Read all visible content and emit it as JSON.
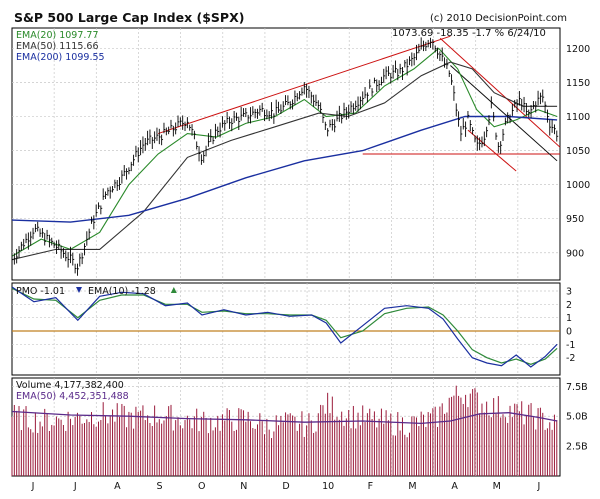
{
  "header": {
    "title": "S&P 500 Large Cap Index ($SPX)",
    "copyright": "(c) 2010 DecisionPoint.com",
    "quote": "1073.69  -18.35  -1.7 %  6/24/10"
  },
  "colors": {
    "price": "#000000",
    "ema20": "#2a8a2a",
    "ema50": "#333333",
    "ema200": "#1a2fa0",
    "trend_red": "#cc1111",
    "pmo": "#1a2fa0",
    "pmo_signal": "#2f8a3a",
    "zero_line": "#c08020",
    "volume": "#9a1a3a",
    "volume_ema": "#5a2a8a",
    "grid": "#c8c8c8"
  },
  "chart_data": [
    {
      "type": "line",
      "name": "price-panel",
      "legend": [
        {
          "label": "EMA(20)",
          "value": "1097.77",
          "color": "#2a8a2a"
        },
        {
          "label": "EMA(50)",
          "value": "1115.66",
          "color": "#333333"
        },
        {
          "label": "EMA(200)",
          "value": "1099.55",
          "color": "#1a2fa0"
        }
      ],
      "ylim": [
        860,
        1230
      ],
      "yticks": [
        "900",
        "950",
        "1000",
        "1050",
        "1100",
        "1150",
        "1200"
      ],
      "x_month_labels": [
        "J",
        "J",
        "A",
        "S",
        "O",
        "N",
        "D",
        "10",
        "F",
        "M",
        "A",
        "M",
        "J"
      ],
      "x_day_range": [
        0,
        375
      ],
      "series": [
        {
          "name": "Price",
          "x": [
            0,
            15,
            30,
            45,
            55,
            65,
            75,
            90,
            105,
            120,
            130,
            140,
            150,
            160,
            170,
            180,
            190,
            200,
            210,
            215,
            225,
            235,
            245,
            255,
            265,
            275,
            282,
            287,
            293,
            300,
            307,
            312,
            318,
            323,
            328,
            333,
            338,
            343,
            348,
            353,
            358,
            363,
            368,
            373
          ],
          "y": [
            890,
            935,
            910,
            880,
            945,
            990,
            1010,
            1060,
            1075,
            1095,
            1040,
            1080,
            1095,
            1100,
            1110,
            1105,
            1120,
            1145,
            1115,
            1080,
            1100,
            1120,
            1140,
            1160,
            1165,
            1185,
            1205,
            1215,
            1190,
            1160,
            1075,
            1095,
            1055,
            1070,
            1115,
            1055,
            1090,
            1110,
            1125,
            1100,
            1120,
            1130,
            1090,
            1075
          ]
        },
        {
          "name": "EMA(20)",
          "x": [
            0,
            20,
            40,
            60,
            80,
            100,
            120,
            140,
            160,
            180,
            200,
            215,
            235,
            255,
            275,
            292,
            305,
            318,
            330,
            345,
            360,
            373
          ],
          "y": [
            895,
            920,
            905,
            930,
            1000,
            1045,
            1075,
            1070,
            1090,
            1100,
            1125,
            1100,
            1105,
            1145,
            1170,
            1200,
            1170,
            1110,
            1085,
            1095,
            1110,
            1100
          ]
        },
        {
          "name": "EMA(50)",
          "x": [
            0,
            30,
            60,
            90,
            120,
            150,
            180,
            210,
            230,
            255,
            280,
            300,
            315,
            330,
            350,
            373
          ],
          "y": [
            890,
            905,
            905,
            960,
            1040,
            1065,
            1085,
            1105,
            1100,
            1120,
            1160,
            1180,
            1170,
            1135,
            1115,
            1115
          ]
        },
        {
          "name": "EMA(200)",
          "x": [
            0,
            40,
            80,
            120,
            160,
            200,
            240,
            280,
            310,
            340,
            373
          ],
          "y": [
            948,
            945,
            955,
            980,
            1010,
            1035,
            1050,
            1080,
            1100,
            1100,
            1095
          ]
        }
      ],
      "annotations": [
        {
          "kind": "trendline",
          "color": "#cc1111",
          "x1": 100,
          "y1": 1075,
          "x2": 300,
          "y2": 1218
        },
        {
          "kind": "trendline",
          "color": "#cc1111",
          "x1": 240,
          "y1": 1045,
          "x2": 375,
          "y2": 1045
        },
        {
          "kind": "trendline",
          "color": "#cc1111",
          "x1": 293,
          "y1": 1215,
          "x2": 375,
          "y2": 1055
        },
        {
          "kind": "trendline",
          "color": "#cc1111",
          "x1": 312,
          "y1": 1080,
          "x2": 345,
          "y2": 1020
        },
        {
          "kind": "trendline",
          "color": "#111111",
          "x1": 300,
          "y1": 1175,
          "x2": 373,
          "y2": 1035
        }
      ]
    },
    {
      "type": "line",
      "name": "pmo-panel",
      "legend": [
        {
          "label": "PMO",
          "value": "-1.01",
          "color": "#1a2fa0",
          "marker": "down"
        },
        {
          "label": "EMA(10)",
          "value": "-1.28",
          "color": "#2f8a3a",
          "marker": "up"
        }
      ],
      "ylim": [
        -3.3,
        3.6
      ],
      "yticks": [
        "-2",
        "-1",
        "0",
        "1",
        "2",
        "3"
      ],
      "zero_line": 0,
      "series": [
        {
          "name": "PMO",
          "x": [
            0,
            15,
            30,
            45,
            60,
            75,
            90,
            105,
            120,
            130,
            145,
            160,
            175,
            190,
            205,
            215,
            225,
            240,
            255,
            270,
            285,
            295,
            305,
            315,
            325,
            335,
            345,
            355,
            365,
            373
          ],
          "y": [
            3.3,
            2.2,
            2.5,
            0.8,
            2.6,
            2.9,
            2.8,
            1.9,
            2.1,
            1.2,
            1.6,
            1.2,
            1.4,
            1.1,
            1.2,
            0.6,
            -0.9,
            0.4,
            1.7,
            1.9,
            1.7,
            0.9,
            -0.6,
            -2.0,
            -2.4,
            -2.6,
            -1.8,
            -2.7,
            -1.9,
            -1.0
          ]
        },
        {
          "name": "EMA(10)",
          "x": [
            0,
            15,
            30,
            45,
            60,
            75,
            90,
            105,
            120,
            130,
            145,
            160,
            175,
            190,
            205,
            215,
            225,
            240,
            255,
            270,
            285,
            295,
            305,
            315,
            325,
            335,
            345,
            355,
            365,
            373
          ],
          "y": [
            3.2,
            2.4,
            2.3,
            1.0,
            2.3,
            2.7,
            2.7,
            2.0,
            2.0,
            1.4,
            1.5,
            1.3,
            1.3,
            1.2,
            1.2,
            0.8,
            -0.5,
            0.0,
            1.3,
            1.7,
            1.8,
            1.2,
            0.0,
            -1.4,
            -2.0,
            -2.4,
            -2.1,
            -2.5,
            -2.1,
            -1.3
          ]
        }
      ]
    },
    {
      "type": "bar",
      "name": "volume-panel",
      "legend": [
        {
          "label": "Volume",
          "value": "4,177,382,400",
          "color": "#111111"
        },
        {
          "label": "EMA(50)",
          "value": "4,452,351,488",
          "color": "#5a2a8a"
        }
      ],
      "ylim": [
        0,
        8.2
      ],
      "yticks": [
        "2.5B",
        "5.0B",
        "7.5B"
      ],
      "series": [
        {
          "name": "Volume",
          "x": [
            0,
            20,
            40,
            60,
            80,
            100,
            120,
            140,
            160,
            175,
            190,
            205,
            215,
            230,
            250,
            270,
            290,
            300,
            310,
            320,
            330,
            340,
            350,
            360,
            373
          ],
          "y": [
            5.0,
            4.6,
            4.8,
            5.2,
            4.9,
            5.1,
            4.7,
            4.6,
            4.8,
            4.2,
            4.4,
            4.3,
            6.0,
            5.1,
            4.6,
            4.3,
            4.8,
            6.5,
            7.0,
            6.2,
            5.8,
            5.5,
            5.2,
            4.9,
            4.2
          ]
        },
        {
          "name": "EMA(50)",
          "x": [
            0,
            40,
            80,
            120,
            160,
            200,
            240,
            280,
            300,
            320,
            340,
            360,
            373
          ],
          "y": [
            5.4,
            5.1,
            5.0,
            4.8,
            4.7,
            4.5,
            4.6,
            4.4,
            4.6,
            5.2,
            5.3,
            4.9,
            4.6
          ]
        }
      ]
    }
  ]
}
